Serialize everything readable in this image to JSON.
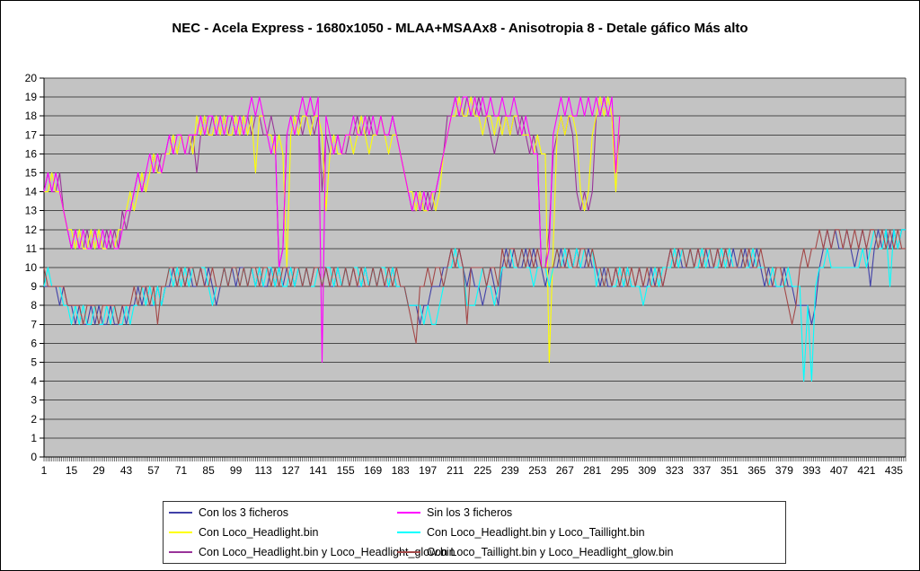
{
  "title": "NEC - Acela Express - 1680x1050 - MLAA+MSAAx8 - Anisotropia 8 - Detale gáfico Más alto",
  "chart_data": {
    "type": "line",
    "title": "NEC - Acela Express - 1680x1050 - MLAA+MSAAx8 - Anisotropia 8 - Detale gáfico Más alto",
    "xlabel": "",
    "ylabel": "",
    "ylim": [
      0,
      20
    ],
    "y_ticks": [
      0,
      1,
      2,
      3,
      4,
      5,
      6,
      7,
      8,
      9,
      10,
      11,
      12,
      13,
      14,
      15,
      16,
      17,
      18,
      19,
      20
    ],
    "x_range": [
      1,
      441
    ],
    "x_tick_labels": [
      "1",
      "15",
      "29",
      "43",
      "57",
      "71",
      "85",
      "99",
      "113",
      "127",
      "141",
      "155",
      "169",
      "183",
      "197",
      "211",
      "225",
      "239",
      "253",
      "267",
      "281",
      "295",
      "309",
      "323",
      "337",
      "351",
      "365",
      "379",
      "393",
      "407",
      "421",
      "435"
    ],
    "x_start": 1,
    "x_step_between_points": 2,
    "grid": "horizontal",
    "legend_position": "bottom",
    "colors": {
      "plot_bg": "#C3C3C3",
      "gridline": "#4A4A4A",
      "axis": "#000000",
      "chart_bg": "#FFFFFF"
    },
    "series": [
      {
        "name": "Con los 3 ficheros",
        "color": "#4040A8",
        "values": [
          9,
          9,
          9,
          9,
          8,
          9,
          8,
          8,
          7,
          8,
          7,
          7,
          8,
          7,
          8,
          7,
          7,
          8,
          7,
          7,
          8,
          7,
          8,
          8,
          9,
          8,
          9,
          8,
          8,
          9,
          8,
          9,
          9,
          10,
          9,
          10,
          9,
          10,
          9,
          9,
          10,
          9,
          10,
          9,
          8,
          9,
          10,
          9,
          10,
          9,
          10,
          10,
          9,
          10,
          9,
          10,
          9,
          9,
          10,
          9,
          10,
          9,
          10,
          10,
          9,
          10,
          9,
          10,
          9,
          10,
          10,
          9,
          10,
          9,
          9,
          10,
          9,
          10,
          9,
          10,
          9,
          9,
          10,
          9,
          10,
          9,
          10,
          9,
          9,
          10,
          9,
          9,
          9,
          8,
          8,
          8,
          7,
          8,
          8,
          9,
          9,
          9,
          10,
          10,
          11,
          10,
          11,
          10,
          9,
          10,
          9,
          9,
          8,
          9,
          10,
          9,
          8,
          10,
          11,
          10,
          11,
          10,
          10,
          11,
          10,
          11,
          10,
          10,
          9,
          10,
          10,
          10,
          11,
          10,
          11,
          10,
          11,
          10,
          10,
          11,
          10,
          10,
          9,
          10,
          9,
          9,
          10,
          9,
          9,
          10,
          9,
          9,
          10,
          9,
          9,
          10,
          9,
          10,
          9,
          10,
          11,
          10,
          11,
          10,
          10,
          11,
          10,
          11,
          10,
          11,
          10,
          10,
          11,
          10,
          11,
          10,
          11,
          10,
          10,
          11,
          10,
          10,
          11,
          10,
          9,
          10,
          9,
          9,
          9,
          10,
          9,
          9,
          8,
          8,
          8,
          8,
          7,
          8,
          10,
          11,
          12,
          11,
          12,
          11,
          11,
          12,
          11,
          10,
          11,
          12,
          11,
          9,
          11,
          12,
          11,
          12,
          11,
          12,
          11,
          12,
          12
        ]
      },
      {
        "name": "Sin los 3 ficheros",
        "color": "#FF00FF",
        "values": [
          14,
          15,
          14,
          15,
          14,
          13,
          12,
          11,
          12,
          11,
          12,
          11,
          11,
          12,
          11,
          12,
          11,
          12,
          11,
          11,
          12,
          13,
          13,
          14,
          15,
          14,
          15,
          16,
          15,
          16,
          15,
          16,
          17,
          16,
          17,
          17,
          16,
          17,
          17,
          17,
          18,
          17,
          18,
          18,
          17,
          18,
          17,
          18,
          18,
          17,
          18,
          17,
          18,
          19,
          18,
          19,
          18,
          17,
          16,
          17,
          10,
          11,
          17,
          18,
          17,
          18,
          19,
          18,
          19,
          18,
          19,
          5,
          18,
          17,
          16,
          17,
          16,
          17,
          17,
          18,
          17,
          17,
          18,
          17,
          18,
          17,
          18,
          17,
          17,
          18,
          17,
          16,
          15,
          14,
          13,
          14,
          13,
          14,
          13,
          14,
          14,
          15,
          16,
          17,
          18,
          19,
          18,
          19,
          19,
          18,
          19,
          18,
          19,
          18,
          19,
          18,
          18,
          19,
          18,
          18,
          19,
          18,
          17,
          18,
          17,
          16,
          16,
          10,
          10,
          11,
          17,
          18,
          19,
          18,
          19,
          18,
          18,
          19,
          18,
          19,
          18,
          19,
          18,
          19,
          18,
          19,
          15,
          18
        ]
      },
      {
        "name": "Con Loco_Headlight.bin",
        "color": "#FFFF00",
        "values": [
          14,
          14,
          15,
          14,
          14,
          13,
          12,
          12,
          11,
          12,
          11,
          11,
          12,
          11,
          12,
          11,
          11,
          12,
          11,
          12,
          12,
          13,
          14,
          13,
          14,
          15,
          14,
          15,
          16,
          15,
          15,
          16,
          16,
          17,
          16,
          17,
          16,
          17,
          16,
          18,
          17,
          18,
          17,
          17,
          18,
          17,
          18,
          17,
          17,
          18,
          17,
          18,
          17,
          18,
          15,
          18,
          18,
          17,
          17,
          16,
          17,
          16,
          10,
          17,
          18,
          17,
          18,
          18,
          17,
          18,
          18,
          17,
          13,
          16,
          17,
          16,
          16,
          17,
          17,
          16,
          17,
          18,
          17,
          16,
          17,
          17,
          18,
          17,
          16,
          17,
          17,
          16,
          15,
          14,
          14,
          13,
          14,
          13,
          13,
          14,
          13,
          14,
          16,
          17,
          18,
          18,
          19,
          18,
          18,
          19,
          18,
          18,
          17,
          18,
          18,
          17,
          18,
          17,
          18,
          17,
          18,
          18,
          17,
          17,
          17,
          16,
          17,
          16,
          16,
          5,
          11,
          17,
          18,
          17,
          18,
          18,
          17,
          14,
          13,
          14,
          17,
          18,
          19,
          18,
          19,
          18,
          14,
          18
        ]
      },
      {
        "name": "Con Loco_Headlight.bin y Loco_Taillight.bin",
        "color": "#00FFFF",
        "values": [
          9,
          10,
          9,
          9,
          9,
          8,
          8,
          7,
          8,
          7,
          8,
          7,
          7,
          8,
          7,
          7,
          8,
          7,
          8,
          7,
          7,
          8,
          7,
          8,
          8,
          9,
          8,
          9,
          8,
          9,
          8,
          9,
          10,
          9,
          10,
          9,
          10,
          9,
          10,
          9,
          10,
          10,
          9,
          8,
          9,
          9,
          10,
          9,
          10,
          10,
          9,
          10,
          9,
          10,
          9,
          10,
          9,
          10,
          10,
          9,
          10,
          9,
          9,
          10,
          9,
          10,
          9,
          10,
          9,
          9,
          10,
          9,
          10,
          10,
          9,
          10,
          9,
          10,
          9,
          10,
          10,
          9,
          10,
          9,
          10,
          9,
          10,
          10,
          9,
          10,
          9,
          9,
          9,
          8,
          8,
          8,
          8,
          7,
          8,
          7,
          7,
          8,
          9,
          10,
          10,
          11,
          10,
          10,
          8,
          8,
          8,
          9,
          10,
          9,
          9,
          8,
          9,
          10,
          10,
          11,
          10,
          10,
          11,
          10,
          10,
          9,
          10,
          10,
          10,
          9,
          10,
          11,
          10,
          11,
          10,
          10,
          11,
          10,
          11,
          10,
          11,
          9,
          10,
          9,
          10,
          9,
          9,
          10,
          9,
          10,
          9,
          9,
          9,
          8,
          9,
          9,
          10,
          9,
          10,
          10,
          10,
          11,
          10,
          11,
          10,
          11,
          10,
          10,
          11,
          10,
          11,
          10,
          10,
          11,
          10,
          11,
          10,
          10,
          11,
          10,
          10,
          11,
          10,
          10,
          10,
          9,
          10,
          9,
          9,
          9,
          10,
          9,
          9,
          9,
          4,
          8,
          4,
          9,
          10,
          10,
          11,
          10,
          10,
          10,
          10,
          10,
          10,
          10,
          10,
          11,
          10,
          11,
          12,
          11,
          11,
          12,
          9,
          12,
          11,
          12,
          12
        ]
      },
      {
        "name": "Con Loco_Headlight.bin y Loco_Headlight_glow.bin",
        "color": "#993399",
        "values": [
          14,
          15,
          14,
          14,
          15,
          13,
          12,
          11,
          12,
          11,
          11,
          12,
          11,
          12,
          11,
          11,
          12,
          11,
          12,
          11,
          13,
          12,
          13,
          14,
          15,
          14,
          15,
          15,
          16,
          15,
          16,
          16,
          17,
          16,
          16,
          17,
          16,
          16,
          17,
          15,
          17,
          18,
          17,
          18,
          17,
          17,
          18,
          17,
          18,
          17,
          17,
          18,
          18,
          17,
          18,
          18,
          17,
          17,
          18,
          17,
          10,
          11,
          17,
          17,
          18,
          18,
          17,
          18,
          18,
          17,
          18,
          14,
          17,
          16,
          16,
          17,
          16,
          16,
          17,
          17,
          18,
          17,
          17,
          18,
          17,
          17,
          18,
          17,
          17,
          18,
          17,
          16,
          15,
          14,
          13,
          13,
          14,
          13,
          14,
          13,
          14,
          15,
          16,
          18,
          18,
          19,
          18,
          18,
          19,
          18,
          18,
          19,
          18,
          18,
          17,
          16,
          17,
          18,
          18,
          17,
          18,
          17,
          18,
          17,
          16,
          17,
          16,
          10,
          10,
          12,
          16,
          17,
          18,
          17,
          18,
          17,
          14,
          13,
          14,
          13,
          14,
          18,
          18,
          19,
          18,
          18,
          15,
          17
        ]
      },
      {
        "name": "Con Loco_Taillight.bin y Loco_Headlight_glow.bin",
        "color": "#A34848",
        "values": [
          10,
          9,
          9,
          9,
          9,
          9,
          8,
          8,
          8,
          8,
          7,
          8,
          8,
          8,
          7,
          8,
          8,
          8,
          8,
          7,
          8,
          8,
          8,
          9,
          8,
          9,
          9,
          8,
          9,
          7,
          9,
          9,
          10,
          10,
          9,
          10,
          9,
          10,
          10,
          9,
          10,
          9,
          9,
          10,
          9,
          9,
          10,
          9,
          10,
          10,
          9,
          10,
          9,
          10,
          10,
          9,
          10,
          10,
          9,
          10,
          9,
          10,
          10,
          9,
          10,
          10,
          9,
          10,
          9,
          10,
          10,
          9,
          10,
          9,
          10,
          9,
          9,
          10,
          9,
          10,
          9,
          10,
          9,
          9,
          10,
          9,
          10,
          9,
          10,
          9,
          10,
          9,
          9,
          8,
          7,
          6,
          9,
          9,
          10,
          9,
          10,
          10,
          9,
          10,
          11,
          10,
          11,
          10,
          7,
          10,
          10,
          10,
          10,
          9,
          10,
          10,
          9,
          11,
          10,
          11,
          11,
          10,
          11,
          10,
          11,
          10,
          11,
          10,
          10,
          10,
          10,
          11,
          10,
          10,
          11,
          10,
          10,
          11,
          11,
          10,
          11,
          10,
          10,
          9,
          10,
          9,
          10,
          9,
          10,
          9,
          10,
          9,
          10,
          9,
          10,
          9,
          9,
          10,
          9,
          10,
          11,
          10,
          11,
          11,
          10,
          11,
          10,
          11,
          10,
          11,
          11,
          10,
          11,
          10,
          11,
          10,
          10,
          10,
          11,
          10,
          11,
          10,
          10,
          11,
          10,
          9,
          9,
          10,
          10,
          9,
          8,
          7,
          8,
          10,
          11,
          10,
          11,
          11,
          12,
          11,
          12,
          11,
          12,
          12,
          11,
          12,
          11,
          12,
          11,
          12,
          11,
          12,
          12,
          11,
          12,
          11,
          12,
          11,
          12,
          11,
          11
        ]
      }
    ]
  },
  "legend": {
    "items": [
      "Con los 3 ficheros",
      "Sin los 3 ficheros",
      "Con Loco_Headlight.bin",
      "Con Loco_Headlight.bin y Loco_Taillight.bin",
      "Con Loco_Headlight.bin y Loco_Headlight_glow.bin",
      "Con Loco_Taillight.bin y Loco_Headlight_glow.bin"
    ]
  }
}
